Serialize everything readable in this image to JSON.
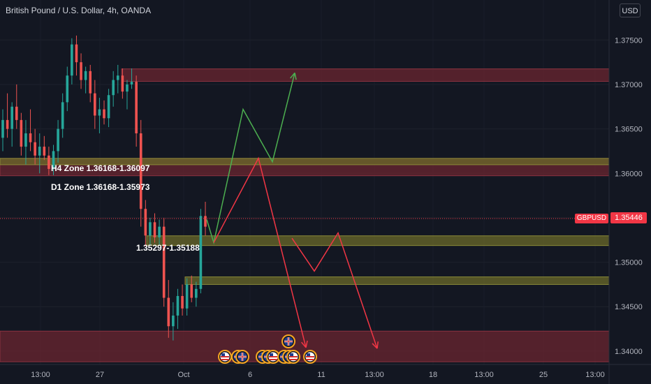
{
  "header": {
    "title": "British Pound / U.S. Dollar, 4h, OANDA",
    "currency": "USD"
  },
  "price": {
    "symbol": "GBPUSD",
    "last": "1.35446"
  },
  "annotations": {
    "h4_zone": "H4 Zone 1.36168-1.36097",
    "d1_zone": "D1 Zone 1.36168-1.35973",
    "range": "1.35297-1.35188"
  },
  "colors": {
    "bg": "#131722",
    "up": "#26a69a",
    "down": "#ef5350",
    "supply_zone": "#6b2630",
    "demand_zone": "#6b6a2a",
    "green_path": "#4caf50",
    "red_path": "#f23645"
  },
  "chart_data": {
    "type": "candlestick",
    "title": "British Pound / U.S. Dollar, 4h, OANDA",
    "ylim": [
      1.3385,
      1.3795
    ],
    "y_ticks": [
      "1.37500",
      "1.37000",
      "1.36500",
      "1.36000",
      "1.35500",
      "1.35000",
      "1.34500",
      "1.34000"
    ],
    "x_ticks": [
      "13:00",
      "27",
      "Oct",
      "6",
      "11",
      "13:00",
      "18",
      "13:00",
      "25",
      "13:00"
    ],
    "candles": [
      [
        1.364,
        1.3672,
        1.3625,
        1.366
      ],
      [
        1.366,
        1.369,
        1.364,
        1.365
      ],
      [
        1.365,
        1.368,
        1.363,
        1.3675
      ],
      [
        1.3675,
        1.37,
        1.365,
        1.366
      ],
      [
        1.366,
        1.3668,
        1.362,
        1.363
      ],
      [
        1.363,
        1.366,
        1.361,
        1.3645
      ],
      [
        1.3645,
        1.3672,
        1.3625,
        1.3635
      ],
      [
        1.3635,
        1.365,
        1.361,
        1.362
      ],
      [
        1.362,
        1.3645,
        1.36,
        1.363
      ],
      [
        1.363,
        1.3642,
        1.3615,
        1.362
      ],
      [
        1.362,
        1.363,
        1.3598,
        1.3605
      ],
      [
        1.3605,
        1.3632,
        1.3598,
        1.3625
      ],
      [
        1.3625,
        1.366,
        1.3612,
        1.365
      ],
      [
        1.365,
        1.369,
        1.364,
        1.368
      ],
      [
        1.368,
        1.372,
        1.367,
        1.371
      ],
      [
        1.371,
        1.3752,
        1.37,
        1.3745
      ],
      [
        1.3745,
        1.3755,
        1.371,
        1.3725
      ],
      [
        1.3725,
        1.3735,
        1.3695,
        1.3705
      ],
      [
        1.3705,
        1.372,
        1.369,
        1.3715
      ],
      [
        1.3715,
        1.3722,
        1.368,
        1.369
      ],
      [
        1.369,
        1.3705,
        1.365,
        1.3665
      ],
      [
        1.3665,
        1.3685,
        1.3645,
        1.3672
      ],
      [
        1.3672,
        1.3682,
        1.3655,
        1.3662
      ],
      [
        1.3662,
        1.3695,
        1.3652,
        1.3688
      ],
      [
        1.3688,
        1.3715,
        1.3675,
        1.3705
      ],
      [
        1.3705,
        1.3722,
        1.369,
        1.371
      ],
      [
        1.371,
        1.3718,
        1.3684,
        1.3692
      ],
      [
        1.3692,
        1.3705,
        1.3672,
        1.37
      ],
      [
        1.37,
        1.3718,
        1.3695,
        1.3703
      ],
      [
        1.3703,
        1.371,
        1.363,
        1.3645
      ],
      [
        1.3645,
        1.366,
        1.354,
        1.356
      ],
      [
        1.356,
        1.357,
        1.3518,
        1.353
      ],
      [
        1.353,
        1.355,
        1.352,
        1.3545
      ],
      [
        1.3545,
        1.3555,
        1.3522,
        1.3528
      ],
      [
        1.3528,
        1.3548,
        1.352,
        1.354
      ],
      [
        1.354,
        1.355,
        1.345,
        1.346
      ],
      [
        1.346,
        1.348,
        1.3415,
        1.3428
      ],
      [
        1.3428,
        1.3455,
        1.3412,
        1.344
      ],
      [
        1.344,
        1.347,
        1.3425,
        1.3462
      ],
      [
        1.3462,
        1.3475,
        1.344,
        1.3448
      ],
      [
        1.3448,
        1.3482,
        1.344,
        1.3475
      ],
      [
        1.3475,
        1.3485,
        1.3455,
        1.346
      ],
      [
        1.346,
        1.3478,
        1.345,
        1.347
      ],
      [
        1.347,
        1.356,
        1.3465,
        1.3552
      ],
      [
        1.3552,
        1.3568,
        1.353,
        1.354
      ]
    ],
    "zones": [
      {
        "kind": "supply",
        "top": 1.37175,
        "bottom": 1.37035,
        "from": 174,
        "to": 872
      },
      {
        "kind": "supply",
        "top": 1.36168,
        "bottom": 1.35973,
        "from": 0,
        "to": 872
      },
      {
        "kind": "demand",
        "top": 1.36168,
        "bottom": 1.36097,
        "from": 0,
        "to": 872
      },
      {
        "kind": "demand",
        "top": 1.35297,
        "bottom": 1.35188,
        "from": 210,
        "to": 872
      },
      {
        "kind": "demand",
        "top": 1.34835,
        "bottom": 1.3475,
        "from": 265,
        "to": 872
      },
      {
        "kind": "supply",
        "top": 1.34225,
        "bottom": 1.3388,
        "from": 0,
        "to": 872
      }
    ],
    "paths": [
      {
        "color": "green",
        "points": [
          [
            296,
            1.3548
          ],
          [
            306,
            1.3522
          ],
          [
            348,
            1.3672
          ],
          [
            390,
            1.3613
          ],
          [
            422,
            1.3713
          ]
        ]
      },
      {
        "color": "red",
        "points": [
          [
            306,
            1.3522
          ],
          [
            370,
            1.3617
          ],
          [
            438,
            1.3404
          ]
        ]
      },
      {
        "color": "red",
        "points": [
          [
            418,
            1.3527
          ],
          [
            450,
            1.349
          ],
          [
            484,
            1.3533
          ],
          [
            540,
            1.3403
          ]
        ]
      }
    ]
  }
}
